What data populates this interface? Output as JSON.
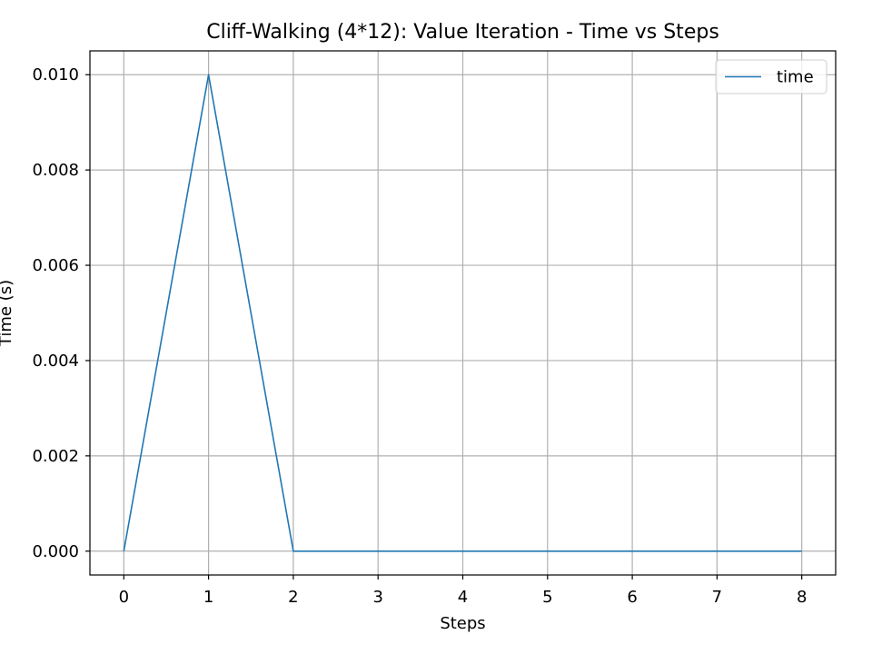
{
  "chart_data": {
    "type": "line",
    "title": "Cliff-Walking (4*12): Value Iteration - Time vs Steps",
    "xlabel": "Steps",
    "ylabel": "Time (s)",
    "x": [
      0,
      1,
      2,
      3,
      4,
      5,
      6,
      7,
      8
    ],
    "series": [
      {
        "name": "time",
        "color": "#1f77b4",
        "values": [
          0.0,
          0.01,
          0.0,
          0.0,
          0.0,
          0.0,
          0.0,
          0.0,
          0.0
        ]
      }
    ],
    "xlim": [
      -0.4,
      8.4
    ],
    "ylim": [
      -0.0005,
      0.0105
    ],
    "xticks": [
      0,
      1,
      2,
      3,
      4,
      5,
      6,
      7,
      8
    ],
    "xtick_labels": [
      "0",
      "1",
      "2",
      "3",
      "4",
      "5",
      "6",
      "7",
      "8"
    ],
    "yticks": [
      0.0,
      0.002,
      0.004,
      0.006,
      0.008,
      0.01
    ],
    "ytick_labels": [
      "0.000",
      "0.002",
      "0.004",
      "0.006",
      "0.008",
      "0.010"
    ],
    "grid": true,
    "legend_position": "upper right",
    "grid_color": "#b0b0b0",
    "axes_color": "#000000"
  }
}
